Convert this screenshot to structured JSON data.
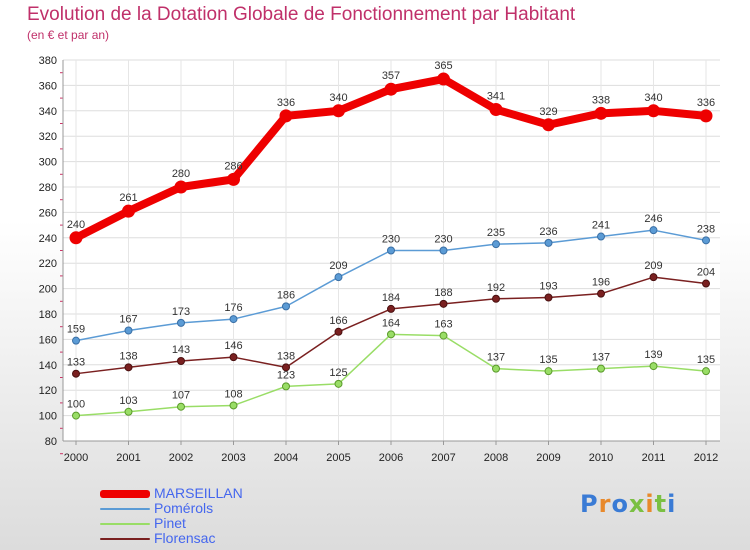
{
  "title": "Evolution de la Dotation Globale de Fonctionnement par Habitant",
  "subtitle": "(en € et par an)",
  "logo_text": "Proxiti",
  "colors": {
    "title": "#c0306a",
    "marseillan": "#ee0000",
    "pomerols": "#5b9bd5",
    "pinet": "#99dd66",
    "florensac": "#7a2020",
    "legend_text": "#4466ee",
    "axis": "#cc3366"
  },
  "chart_data": {
    "type": "line",
    "title": "Evolution de la Dotation Globale de Fonctionnement par Habitant",
    "subtitle": "(en € et par an)",
    "xlabel": "",
    "ylabel": "",
    "x": [
      "2000",
      "2001",
      "2002",
      "2003",
      "2004",
      "2005",
      "2006",
      "2007",
      "2008",
      "2009",
      "2010",
      "2011",
      "2012"
    ],
    "ylim": [
      80,
      380
    ],
    "yticks": [
      80,
      100,
      120,
      140,
      160,
      180,
      200,
      220,
      240,
      260,
      280,
      300,
      320,
      340,
      360,
      380
    ],
    "grid": true,
    "legend_position": "bottom-left",
    "series": [
      {
        "name": "MARSEILLAN",
        "key": "marseillan",
        "values": [
          240,
          261,
          280,
          286,
          336,
          340,
          357,
          365,
          341,
          329,
          338,
          340,
          336
        ]
      },
      {
        "name": "Pomérols",
        "key": "pomerols",
        "values": [
          159,
          167,
          173,
          176,
          186,
          209,
          230,
          230,
          235,
          236,
          241,
          246,
          238
        ]
      },
      {
        "name": "Pinet",
        "key": "pinet",
        "values": [
          100,
          103,
          107,
          108,
          123,
          125,
          164,
          163,
          137,
          135,
          137,
          139,
          135
        ]
      },
      {
        "name": "Florensac",
        "key": "florensac",
        "values": [
          133,
          138,
          143,
          146,
          138,
          166,
          184,
          188,
          192,
          193,
          196,
          209,
          204
        ]
      }
    ]
  }
}
